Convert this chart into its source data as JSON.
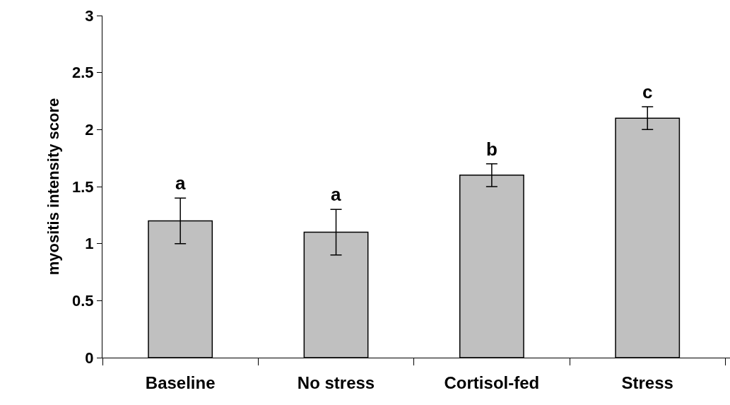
{
  "chart_data": {
    "type": "bar",
    "ylabel": "myositis intensity score",
    "categories": [
      "Baseline",
      "No stress",
      "Cortisol-fed",
      "Stress"
    ],
    "values": [
      1.2,
      1.1,
      1.6,
      2.1
    ],
    "errors": [
      0.2,
      0.2,
      0.1,
      0.1
    ],
    "color": "#c0c0c0",
    "ylim": [
      0,
      3
    ],
    "yticks": [
      0,
      0.5,
      1,
      1.5,
      2,
      2.5,
      3
    ],
    "annotations": [
      {
        "text": "a",
        "x": "Baseline",
        "y": 1.4
      },
      {
        "text": "a",
        "x": "No stress",
        "y": 1.3
      },
      {
        "text": "b",
        "x": "Cortisol-fed",
        "y": 1.7
      },
      {
        "text": "c",
        "x": "Stress",
        "y": 2.2
      }
    ]
  }
}
